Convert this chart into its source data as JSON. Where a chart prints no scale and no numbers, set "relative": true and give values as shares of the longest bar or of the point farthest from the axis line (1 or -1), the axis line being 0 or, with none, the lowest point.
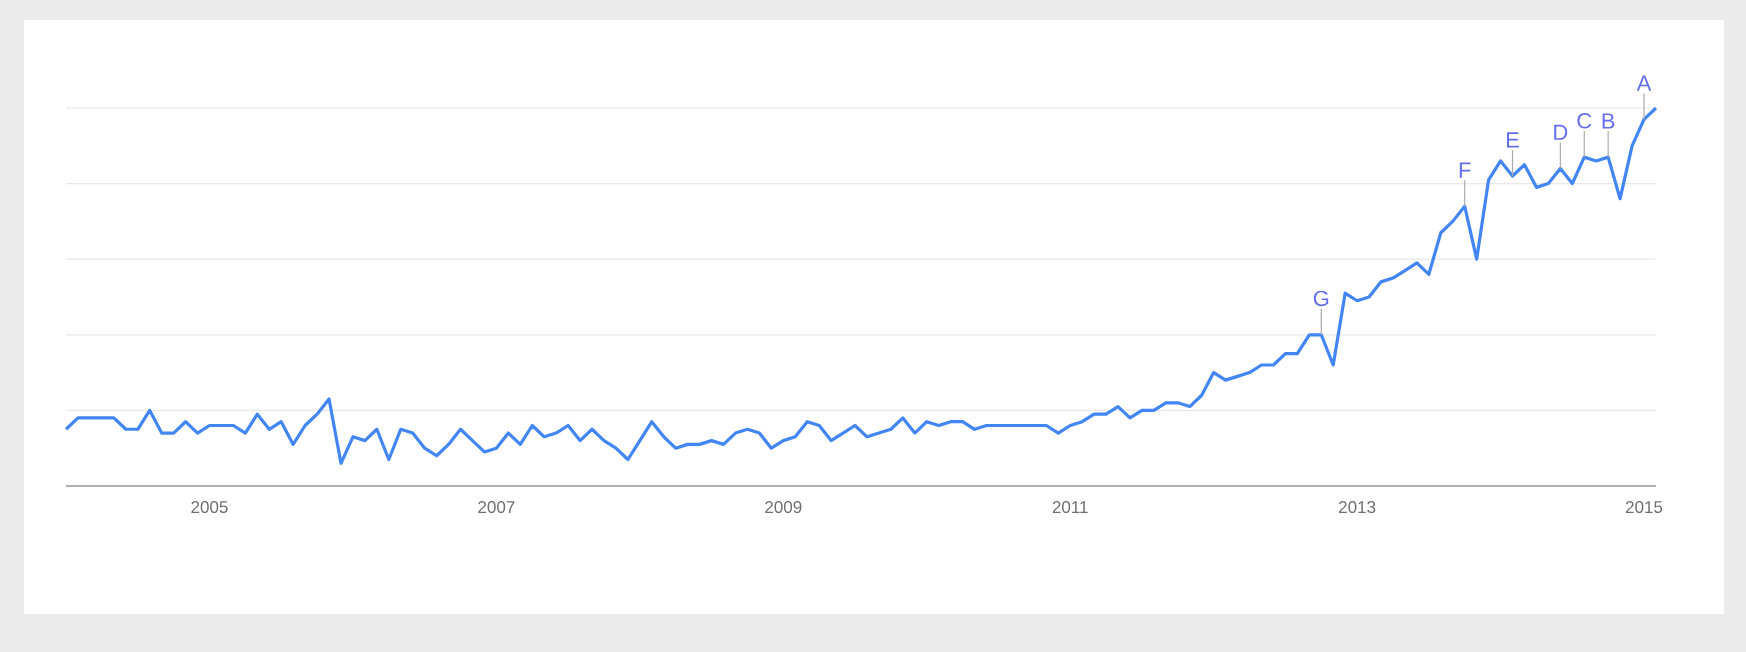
{
  "chart_data": {
    "type": "line",
    "relative": true,
    "grid": "y",
    "x": [
      "2004-01",
      "2004-02",
      "2004-03",
      "2004-04",
      "2004-05",
      "2004-06",
      "2004-07",
      "2004-08",
      "2004-09",
      "2004-10",
      "2004-11",
      "2004-12",
      "2005-01",
      "2005-02",
      "2005-03",
      "2005-04",
      "2005-05",
      "2005-06",
      "2005-07",
      "2005-08",
      "2005-09",
      "2005-10",
      "2005-11",
      "2005-12",
      "2006-01",
      "2006-02",
      "2006-03",
      "2006-04",
      "2006-05",
      "2006-06",
      "2006-07",
      "2006-08",
      "2006-09",
      "2006-10",
      "2006-11",
      "2006-12",
      "2007-01",
      "2007-02",
      "2007-03",
      "2007-04",
      "2007-05",
      "2007-06",
      "2007-07",
      "2007-08",
      "2007-09",
      "2007-10",
      "2007-11",
      "2007-12",
      "2008-01",
      "2008-02",
      "2008-03",
      "2008-04",
      "2008-05",
      "2008-06",
      "2008-07",
      "2008-08",
      "2008-09",
      "2008-10",
      "2008-11",
      "2008-12",
      "2009-01",
      "2009-02",
      "2009-03",
      "2009-04",
      "2009-05",
      "2009-06",
      "2009-07",
      "2009-08",
      "2009-09",
      "2009-10",
      "2009-11",
      "2009-12",
      "2010-01",
      "2010-02",
      "2010-03",
      "2010-04",
      "2010-05",
      "2010-06",
      "2010-07",
      "2010-08",
      "2010-09",
      "2010-10",
      "2010-11",
      "2010-12",
      "2011-01",
      "2011-02",
      "2011-03",
      "2011-04",
      "2011-05",
      "2011-06",
      "2011-07",
      "2011-08",
      "2011-09",
      "2011-10",
      "2011-11",
      "2011-12",
      "2012-01",
      "2012-02",
      "2012-03",
      "2012-04",
      "2012-05",
      "2012-06",
      "2012-07",
      "2012-08",
      "2012-09",
      "2012-10",
      "2012-11",
      "2012-12",
      "2013-01",
      "2013-02",
      "2013-03",
      "2013-04",
      "2013-05",
      "2013-06",
      "2013-07",
      "2013-08",
      "2013-09",
      "2013-10",
      "2013-11",
      "2013-12",
      "2014-01",
      "2014-02",
      "2014-03",
      "2014-04",
      "2014-05",
      "2014-06",
      "2014-07",
      "2014-08",
      "2014-09",
      "2014-10",
      "2014-11",
      "2014-12",
      "2015-01",
      "2015-02"
    ],
    "series": [
      {
        "color": "#4285f4",
        "values": [
          0.15,
          0.18,
          0.18,
          0.18,
          0.18,
          0.15,
          0.15,
          0.2,
          0.14,
          0.14,
          0.17,
          0.14,
          0.16,
          0.16,
          0.16,
          0.14,
          0.19,
          0.15,
          0.17,
          0.11,
          0.16,
          0.19,
          0.23,
          0.06,
          0.13,
          0.12,
          0.15,
          0.07,
          0.15,
          0.14,
          0.1,
          0.08,
          0.11,
          0.15,
          0.12,
          0.09,
          0.1,
          0.14,
          0.11,
          0.16,
          0.13,
          0.14,
          0.16,
          0.12,
          0.15,
          0.12,
          0.1,
          0.07,
          0.12,
          0.17,
          0.13,
          0.1,
          0.11,
          0.11,
          0.12,
          0.11,
          0.14,
          0.15,
          0.14,
          0.1,
          0.12,
          0.13,
          0.17,
          0.16,
          0.12,
          0.14,
          0.16,
          0.13,
          0.14,
          0.15,
          0.18,
          0.14,
          0.17,
          0.16,
          0.17,
          0.17,
          0.15,
          0.16,
          0.16,
          0.16,
          0.16,
          0.16,
          0.16,
          0.14,
          0.16,
          0.17,
          0.19,
          0.19,
          0.21,
          0.18,
          0.2,
          0.2,
          0.22,
          0.22,
          0.21,
          0.24,
          0.3,
          0.28,
          0.29,
          0.3,
          0.32,
          0.32,
          0.35,
          0.35,
          0.4,
          0.4,
          0.32,
          0.51,
          0.49,
          0.5,
          0.54,
          0.55,
          0.57,
          0.59,
          0.56,
          0.67,
          0.7,
          0.74,
          0.6,
          0.81,
          0.86,
          0.82,
          0.85,
          0.79,
          0.8,
          0.84,
          0.8,
          0.87,
          0.86,
          0.87,
          0.76,
          0.9,
          0.97,
          1.0
        ]
      }
    ],
    "xlim": [
      "2004-01",
      "2015-02"
    ],
    "xticks": [
      "2005",
      "2007",
      "2009",
      "2011",
      "2013",
      "2015"
    ],
    "annotations": [
      {
        "text": "G",
        "x": "2012-10",
        "y": 0.4
      },
      {
        "text": "F",
        "x": "2013-10",
        "y": 0.74
      },
      {
        "text": "E",
        "x": "2014-02",
        "y": 0.82
      },
      {
        "text": "D",
        "x": "2014-06",
        "y": 0.84
      },
      {
        "text": "C",
        "x": "2014-08",
        "y": 0.87
      },
      {
        "text": "B",
        "x": "2014-10",
        "y": 0.87
      },
      {
        "text": "A",
        "x": "2015-01",
        "y": 0.97
      }
    ]
  }
}
